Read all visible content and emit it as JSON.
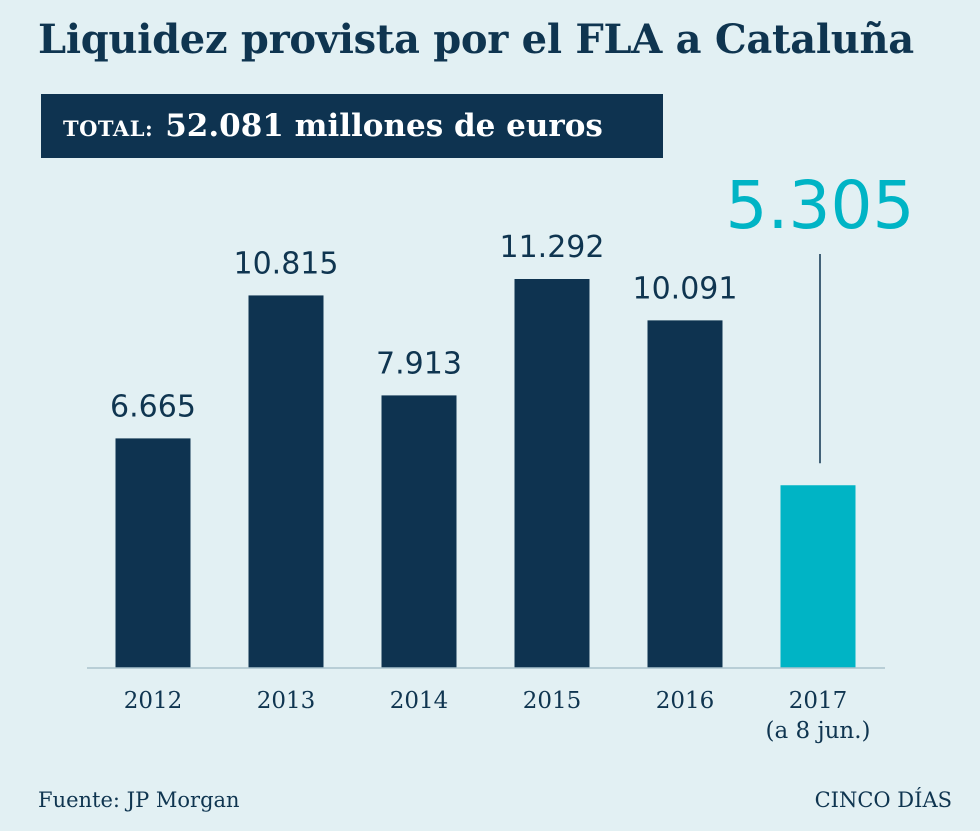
{
  "title": "Liquidez provista por el FLA a Cataluña",
  "total": {
    "label": "TOTAL:",
    "value": "52.081 millones de euros"
  },
  "chart_data": {
    "type": "bar",
    "title": "Liquidez provista por el FLA a Cataluña",
    "categories": [
      "2012",
      "2013",
      "2014",
      "2015",
      "2016",
      "2017"
    ],
    "category_notes": [
      "",
      "",
      "",
      "",
      "",
      "(a 8 jun.)"
    ],
    "values": [
      6665,
      10815,
      7913,
      11292,
      10091,
      5305
    ],
    "value_labels": [
      "6.665",
      "10.815",
      "7.913",
      "11.292",
      "10.091",
      "5.305"
    ],
    "highlight_index": 5,
    "ylim": [
      0,
      11292
    ],
    "xlabel": "",
    "ylabel": "",
    "grid": false,
    "colors": {
      "bar": "#0e3350",
      "highlight": "#00b4c5"
    }
  },
  "footer": {
    "source": "Fuente: JP Morgan",
    "brand": "CINCO DÍAS"
  },
  "colors": {
    "background": "#e2f0f3",
    "text": "#0f3550"
  }
}
